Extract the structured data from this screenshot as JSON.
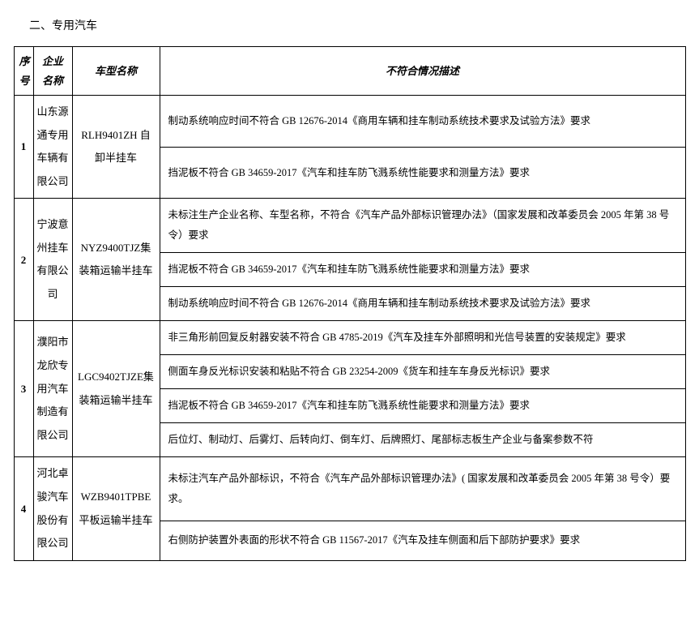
{
  "section_title": "二、专用汽车",
  "headers": {
    "num": "序号",
    "company": "企业名称",
    "model": "车型名称",
    "desc": "不符合情况描述"
  },
  "rows": [
    {
      "num": "1",
      "company": "山东源通专用车辆有限公司",
      "model": "RLH9401ZH 自卸半挂车",
      "descs": [
        "制动系统响应时间不符合 GB 12676-2014《商用车辆和挂车制动系统技术要求及试验方法》要求",
        "挡泥板不符合 GB 34659-2017《汽车和挂车防飞溅系统性能要求和测量方法》要求"
      ]
    },
    {
      "num": "2",
      "company": "宁波意州挂车有限公司",
      "model": "NYZ9400TJZ集装箱运输半挂车",
      "descs": [
        "未标注生产企业名称、车型名称，不符合《汽车产品外部标识管理办法》（国家发展和改革委员会 2005 年第 38 号令）要求",
        "挡泥板不符合 GB 34659-2017《汽车和挂车防飞溅系统性能要求和测量方法》要求",
        "制动系统响应时间不符合 GB 12676-2014《商用车辆和挂车制动系统技术要求及试验方法》要求"
      ]
    },
    {
      "num": "3",
      "company": "濮阳市龙欣专用汽车制造有限公司",
      "model": "LGC9402TJZE集装箱运输半挂车",
      "descs": [
        "非三角形前回复反射器安装不符合 GB 4785-2019《汽车及挂车外部照明和光信号装置的安装规定》要求",
        "侧面车身反光标识安装和粘贴不符合 GB 23254-2009《货车和挂车车身反光标识》要求",
        "挡泥板不符合 GB 34659-2017《汽车和挂车防飞溅系统性能要求和测量方法》要求",
        "后位灯、制动灯、后雾灯、后转向灯、倒车灯、后牌照灯、尾部标志板生产企业与备案参数不符"
      ]
    },
    {
      "num": "4",
      "company": "河北卓骏汽车股份有限公司",
      "model": "WZB9401TPBE平板运输半挂车",
      "descs": [
        "未标注汽车产品外部标识，不符合《汽车产品外部标识管理办法》( 国家发展和改革委员会 2005 年第 38 号令）要求。",
        "右侧防护装置外表面的形状不符合  GB 11567-2017《汽车及挂车侧面和后下部防护要求》要求"
      ]
    }
  ]
}
